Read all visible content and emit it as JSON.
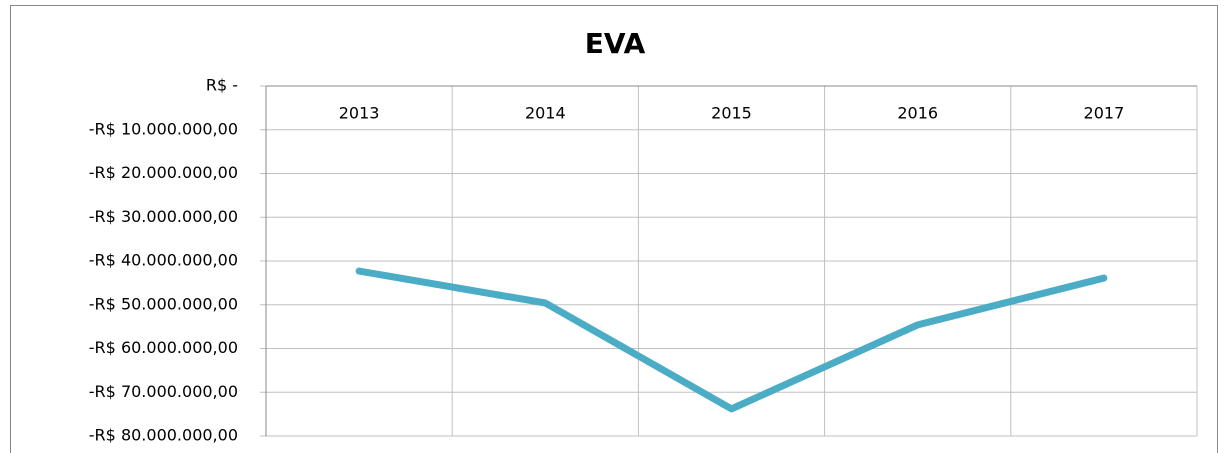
{
  "chart_data": {
    "type": "line",
    "title": "EVA",
    "categories": [
      "2013",
      "2014",
      "2015",
      "2016",
      "2017"
    ],
    "series": [
      {
        "name": "EVA",
        "color": "#4bacc6",
        "values": [
          -42300000,
          -49600000,
          -73800000,
          -54600000,
          -43900000
        ]
      }
    ],
    "ylim": [
      -80000000,
      0
    ],
    "yticks": [
      {
        "value": 0,
        "label": "R$ -"
      },
      {
        "value": -10000000,
        "label": "-R$ 10.000.000,00"
      },
      {
        "value": -20000000,
        "label": "-R$ 20.000.000,00"
      },
      {
        "value": -30000000,
        "label": "-R$ 30.000.000,00"
      },
      {
        "value": -40000000,
        "label": "-R$ 40.000.000,00"
      },
      {
        "value": -50000000,
        "label": "-R$ 50.000.000,00"
      },
      {
        "value": -60000000,
        "label": "-R$ 60.000.000,00"
      },
      {
        "value": -70000000,
        "label": "-R$ 70.000.000,00"
      },
      {
        "value": -80000000,
        "label": "-R$ 80.000.000,00"
      }
    ],
    "grid": true
  }
}
